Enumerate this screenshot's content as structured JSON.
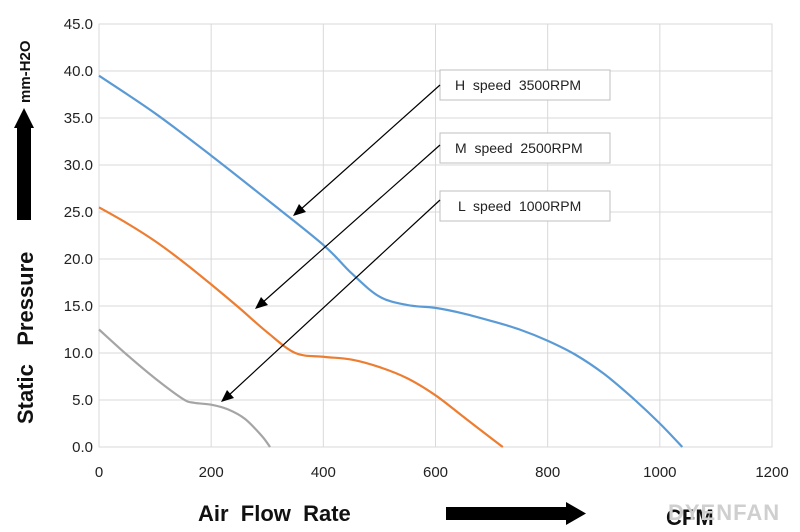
{
  "chart_data": {
    "type": "line",
    "xlabel": "Air  Flow  Rate",
    "xunit": "CFM",
    "ylabel": "Static   Pressure",
    "yunit": "mm-H2O",
    "xlim": [
      0,
      1200
    ],
    "ylim": [
      0,
      45
    ],
    "xticks": [
      "0",
      "200",
      "400",
      "600",
      "800",
      "1000",
      "1200"
    ],
    "yticks": [
      "0.0",
      "5.0",
      "10.0",
      "15.0",
      "20.0",
      "25.0",
      "30.0",
      "35.0",
      "40.0",
      "45.0"
    ],
    "grid": true,
    "series": [
      {
        "name": "H  speed  3500RPM",
        "color": "#5b9bd5",
        "x": [
          0,
          100,
          200,
          300,
          400,
          450,
          500,
          550,
          600,
          650,
          700,
          750,
          800,
          850,
          900,
          950,
          1000,
          1040
        ],
        "y": [
          39.5,
          35.5,
          31.0,
          26.3,
          21.5,
          18.5,
          16.0,
          15.1,
          14.8,
          14.2,
          13.4,
          12.5,
          11.3,
          9.8,
          7.8,
          5.3,
          2.5,
          0.0
        ]
      },
      {
        "name": "M  speed  2500RPM",
        "color": "#ed7d31",
        "x": [
          0,
          50,
          100,
          150,
          200,
          250,
          300,
          350,
          400,
          450,
          500,
          550,
          600,
          650,
          700,
          720
        ],
        "y": [
          25.5,
          23.8,
          21.9,
          19.7,
          17.3,
          14.8,
          12.2,
          10.0,
          9.6,
          9.3,
          8.5,
          7.3,
          5.5,
          3.2,
          0.9,
          0.0
        ]
      },
      {
        "name": "L  speed  1000RPM",
        "color": "#a5a5a5",
        "x": [
          0,
          50,
          100,
          150,
          170,
          200,
          230,
          260,
          290,
          305
        ],
        "y": [
          12.5,
          9.8,
          7.3,
          5.1,
          4.7,
          4.5,
          4.0,
          3.0,
          1.2,
          0.0
        ]
      }
    ]
  },
  "watermark": "DYENFAN",
  "colors": {
    "grid": "#d9d9d9",
    "arrow": "#000000",
    "label_border": "#bfbfbf"
  }
}
